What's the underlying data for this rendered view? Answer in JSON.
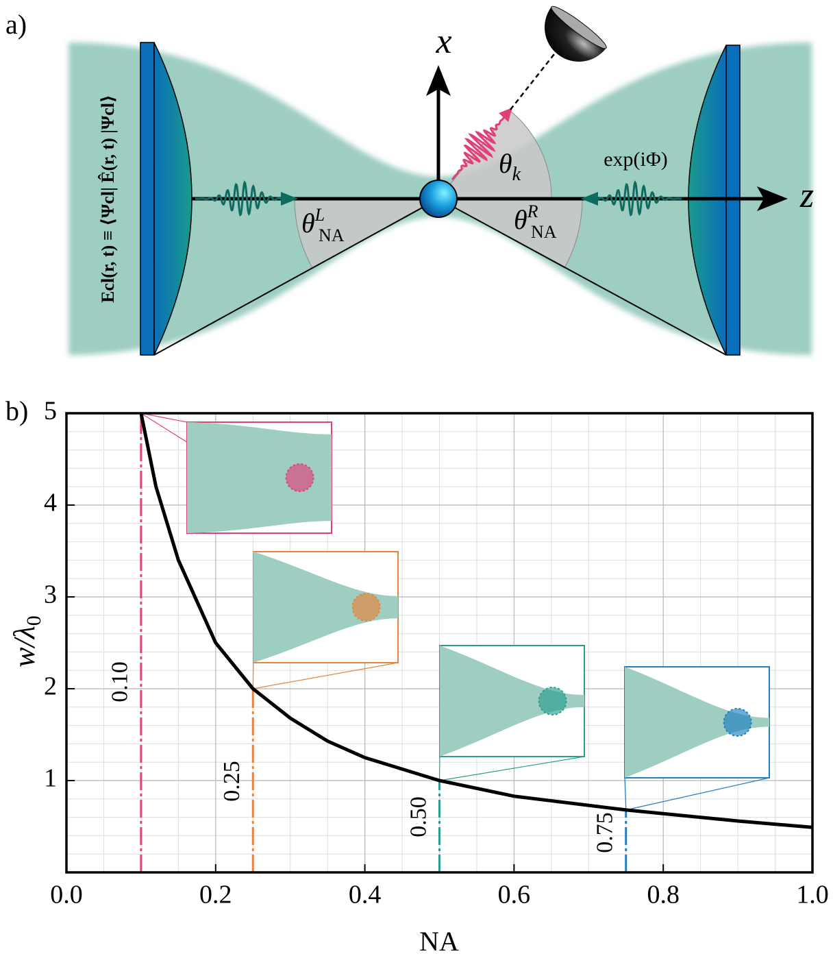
{
  "panel_a": {
    "label": "a)",
    "axis_x": "x",
    "axis_z": "z",
    "theta_k": {
      "symbol": "θ",
      "sub": "k"
    },
    "theta_left": {
      "symbol": "θ",
      "sub": "NA",
      "sup": "L"
    },
    "theta_right": {
      "symbol": "θ",
      "sub": "NA",
      "sup": "R"
    },
    "phase": "exp(iΦ)",
    "field_expression": "Ecl(r, t) ≡ ⟨Ψcl| Ê(r, t) |Ψcl⟩"
  },
  "chart_data": {
    "type": "line",
    "panel_label": "b)",
    "x_label": "NA",
    "y_label": {
      "text": "w/λ",
      "sub": "0"
    },
    "x": [
      0.1,
      0.12,
      0.15,
      0.2,
      0.25,
      0.3,
      0.35,
      0.4,
      0.5,
      0.6,
      0.75,
      0.9,
      1.0
    ],
    "series": [
      {
        "color": "#000000",
        "values": [
          5,
          4.2,
          3.4,
          2.5,
          2.0,
          1.68,
          1.43,
          1.25,
          1.0,
          0.83,
          0.68,
          0.56,
          0.49
        ]
      }
    ],
    "markers": [
      {
        "x": 0.1,
        "label": "0.10",
        "color": "#e0407a"
      },
      {
        "x": 0.25,
        "label": "0.25",
        "color": "#e8833a"
      },
      {
        "x": 0.5,
        "label": "0.50",
        "color": "#2a9d8f"
      },
      {
        "x": 0.75,
        "label": "0.75",
        "color": "#1f7fc0"
      }
    ],
    "xlim": [
      0,
      1
    ],
    "ylim": [
      0,
      5
    ],
    "xticks": [
      {
        "value": 0,
        "label": "0.0"
      },
      0.2,
      0.4,
      0.6,
      0.8,
      {
        "value": 1,
        "label": "1.0"
      }
    ],
    "yticks": [
      1,
      2,
      3,
      4,
      5
    ],
    "grid": true
  }
}
